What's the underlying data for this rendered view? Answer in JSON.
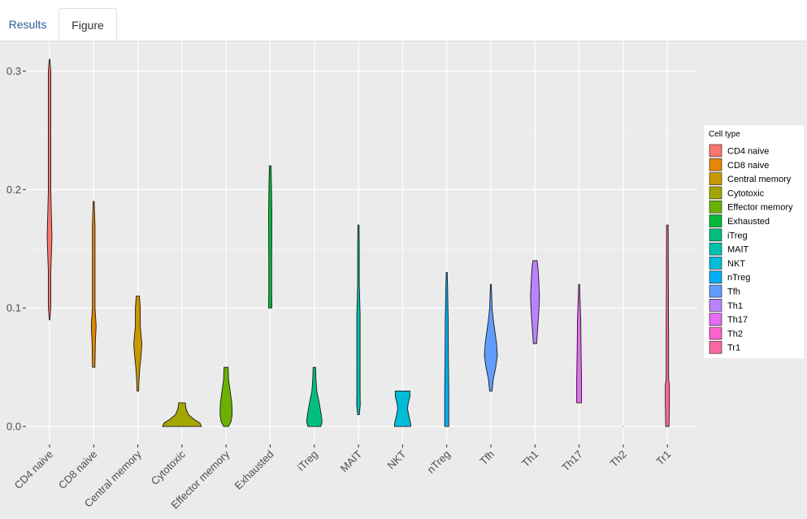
{
  "tabs": [
    {
      "label": "Results"
    },
    {
      "label": "Figure"
    }
  ],
  "chart_data": {
    "type": "violin",
    "categories": [
      "CD4 naive",
      "CD8 naive",
      "Central memory",
      "Cytotoxic",
      "Effector memory",
      "Exhausted",
      "iTreg",
      "MAIT",
      "NKT",
      "nTreg",
      "Tfh",
      "Th1",
      "Th17",
      "Th2",
      "Tr1"
    ],
    "colors": [
      "#F8766D",
      "#E58700",
      "#C99800",
      "#A3A500",
      "#6BB100",
      "#00BA38",
      "#00BF7D",
      "#00C0AF",
      "#00BCD8",
      "#00B0F6",
      "#619CFF",
      "#B983FF",
      "#E76BF3",
      "#FD61D1",
      "#FF67A4"
    ],
    "ranges": [
      [
        0.09,
        0.31
      ],
      [
        0.05,
        0.19
      ],
      [
        0.03,
        0.11
      ],
      [
        0.0,
        0.02
      ],
      [
        0.0,
        0.05
      ],
      [
        0.1,
        0.22
      ],
      [
        0.0,
        0.05
      ],
      [
        0.01,
        0.17
      ],
      [
        0.0,
        0.03
      ],
      [
        0.0,
        0.13
      ],
      [
        0.03,
        0.12
      ],
      [
        0.07,
        0.14
      ],
      [
        0.02,
        0.12
      ],
      [
        0.0,
        0.0
      ],
      [
        0.0,
        0.17
      ]
    ],
    "ylim": [
      -0.015,
      0.325
    ],
    "yticks": [
      "0.0",
      "0.1",
      "0.2",
      "0.3"
    ],
    "ytick_values": [
      0.0,
      0.1,
      0.2,
      0.3
    ],
    "xlabel": "",
    "ylabel": "",
    "legend": {
      "title": "Cell type",
      "position": "right"
    },
    "grid": true
  }
}
